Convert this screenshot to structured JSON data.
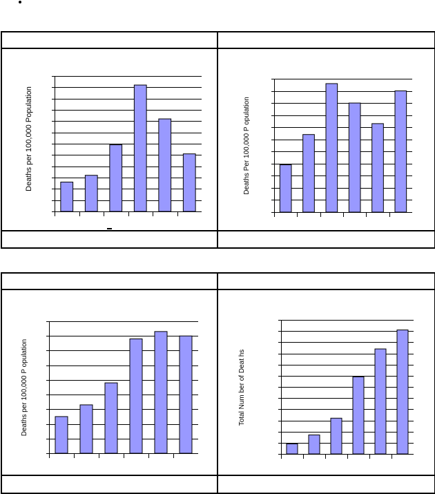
{
  "colors": {
    "bar_fill": "#9999ff",
    "bar_stroke": "#000000",
    "grid": "#000000"
  },
  "chart_data": [
    {
      "type": "bar",
      "ylabel": "Deaths per 100,000 Population",
      "ylim": [
        0,
        12
      ],
      "grid": true,
      "values": [
        2.6,
        3.2,
        5.9,
        11.2,
        8.2,
        5.1
      ]
    },
    {
      "type": "bar",
      "ylabel": "Deaths Per 100,000 P opulation",
      "ylim": [
        0,
        11
      ],
      "grid": true,
      "values": [
        3.9,
        6.4,
        10.6,
        9.0,
        7.3,
        10.0
      ]
    },
    {
      "type": "bar",
      "ylabel": "Deaths per 100,000 P opulation",
      "ylim": [
        0,
        9
      ],
      "grid": true,
      "values": [
        2.5,
        3.3,
        4.8,
        7.8,
        8.3,
        8.0
      ]
    },
    {
      "type": "bar",
      "ylabel": "Total Num ber of Deat hs",
      "ylim": [
        0,
        12
      ],
      "grid": true,
      "values": [
        0.9,
        1.7,
        3.2,
        6.9,
        9.4,
        11.1
      ]
    }
  ]
}
